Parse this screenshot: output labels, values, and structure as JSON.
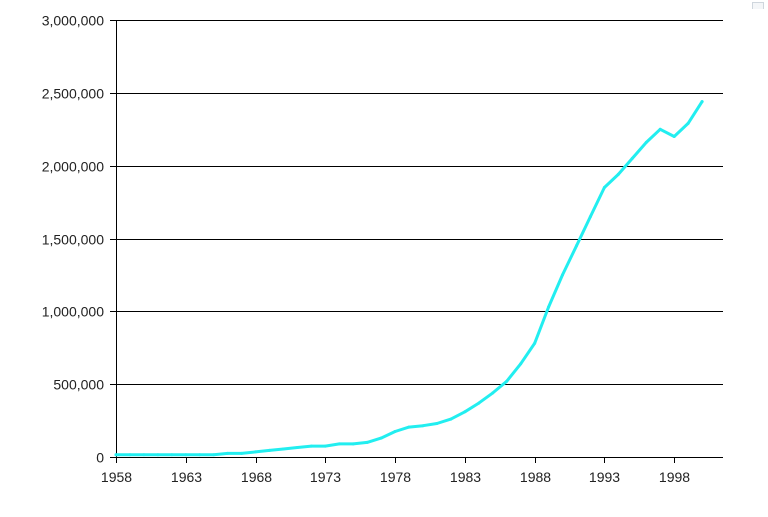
{
  "colors": {
    "line": "#22eef0",
    "axis": "#000000",
    "grid": "#000000",
    "background": "#ffffff"
  },
  "chart_data": {
    "type": "line",
    "title": "",
    "xlabel": "",
    "ylabel": "",
    "grid": "horizontal",
    "legend": "none",
    "xlim": [
      1958,
      2001.5
    ],
    "ylim": [
      0,
      3000000
    ],
    "x_ticks": [
      1958,
      1963,
      1968,
      1973,
      1978,
      1983,
      1988,
      1993,
      1998
    ],
    "x_tick_labels": [
      "1958",
      "1963",
      "1968",
      "1973",
      "1978",
      "1983",
      "1988",
      "1993",
      "1998"
    ],
    "y_ticks": [
      0,
      500000,
      1000000,
      1500000,
      2000000,
      2500000,
      3000000
    ],
    "y_tick_labels": [
      "0",
      "500,000",
      "1,000,000",
      "1,500,000",
      "2,000,000",
      "2,500,000",
      "3,000,000"
    ],
    "series": [
      {
        "x": [
          1958,
          1959,
          1960,
          1961,
          1962,
          1963,
          1964,
          1965,
          1966,
          1967,
          1968,
          1969,
          1970,
          1971,
          1972,
          1973,
          1974,
          1975,
          1976,
          1977,
          1978,
          1979,
          1980,
          1981,
          1982,
          1983,
          1984,
          1985,
          1986,
          1987,
          1988,
          1989,
          1990,
          1991,
          1992,
          1993,
          1994,
          1995,
          1996,
          1997,
          1998,
          1999,
          2000
        ],
        "values": [
          15000,
          15000,
          15000,
          15000,
          15000,
          15000,
          15000,
          15000,
          25000,
          25000,
          35000,
          45000,
          55000,
          65000,
          75000,
          75000,
          90000,
          90000,
          100000,
          130000,
          175000,
          205000,
          215000,
          230000,
          260000,
          310000,
          370000,
          440000,
          520000,
          640000,
          780000,
          1030000,
          1250000,
          1450000,
          1650000,
          1850000,
          1940000,
          2050000,
          2160000,
          2250000,
          2200000,
          2290000,
          2440000
        ]
      }
    ]
  }
}
